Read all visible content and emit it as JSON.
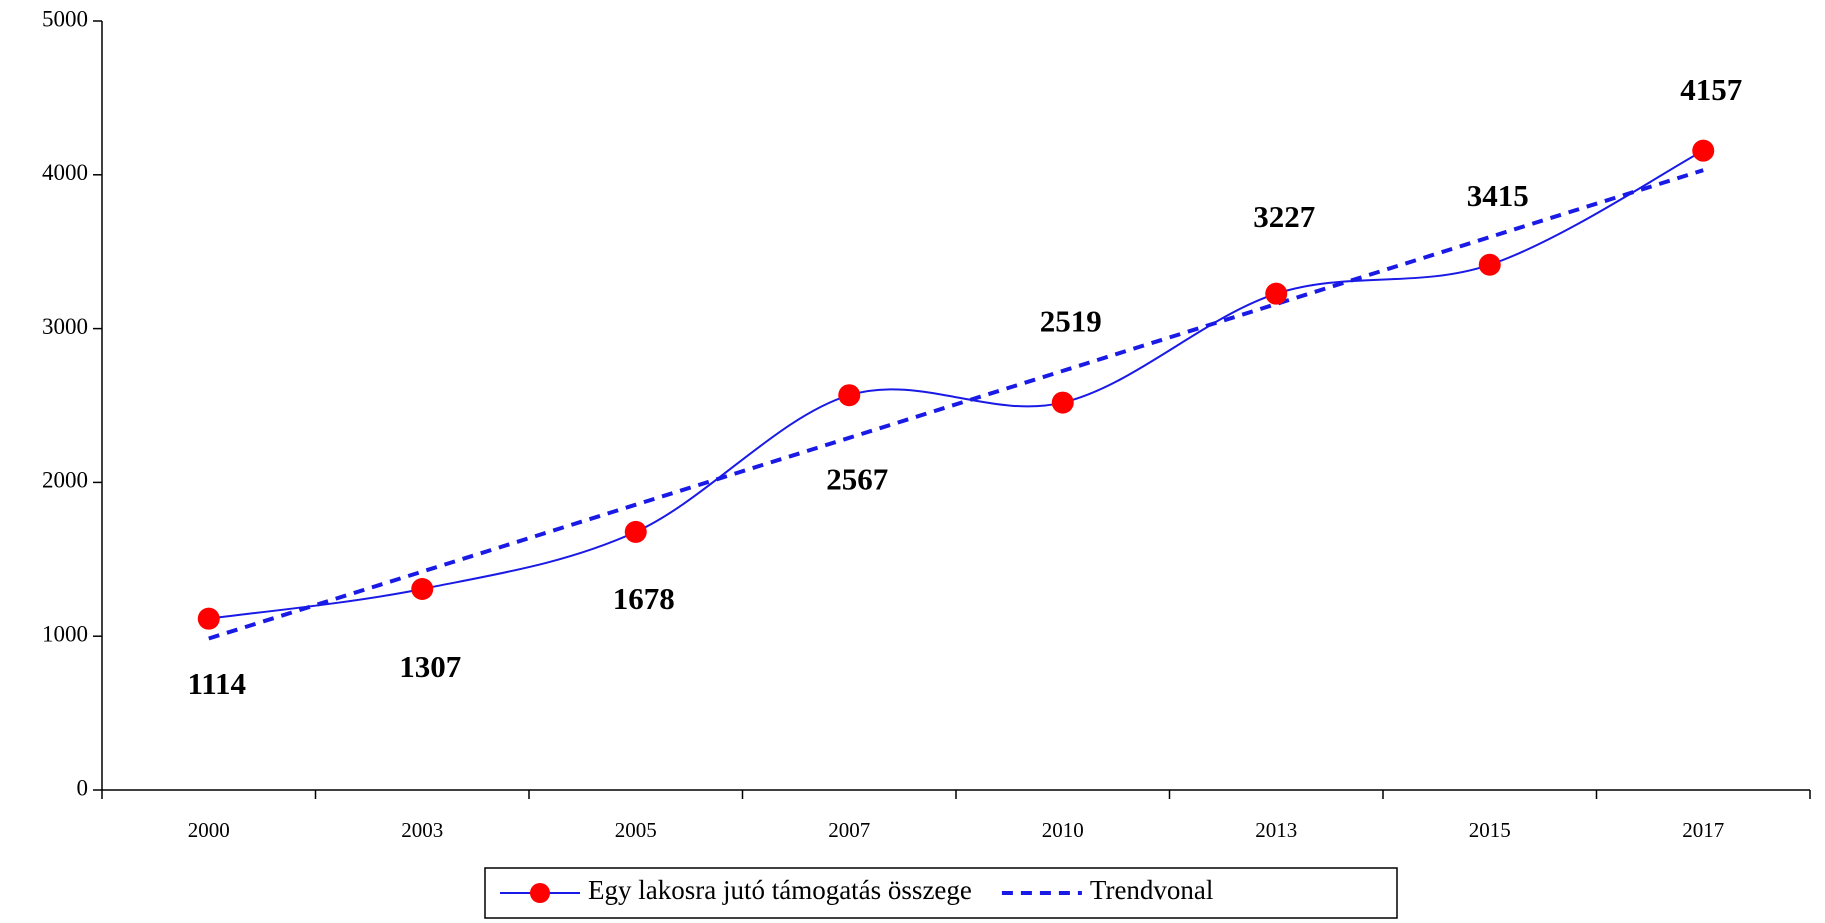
{
  "chart_data": {
    "type": "line",
    "categories": [
      "2000",
      "2003",
      "2005",
      "2007",
      "2010",
      "2013",
      "2015",
      "2017"
    ],
    "series": [
      {
        "name": "Egy lakosra jutó támogatás összege",
        "color": "#1a1ae6",
        "marker_color": "#ff0000",
        "smooth": true,
        "show_labels": true,
        "values": [
          1114,
          1307,
          1678,
          2567,
          2519,
          3227,
          3415,
          4157
        ]
      },
      {
        "name": "Trendvonal",
        "color": "#1a1ae6",
        "dashed": true,
        "values": [
          985,
          1420,
          1855,
          2290,
          2725,
          3160,
          3595,
          4030
        ]
      }
    ],
    "ylim": [
      0,
      5000
    ],
    "yticks": [
      0,
      1000,
      2000,
      3000,
      4000,
      5000
    ]
  }
}
